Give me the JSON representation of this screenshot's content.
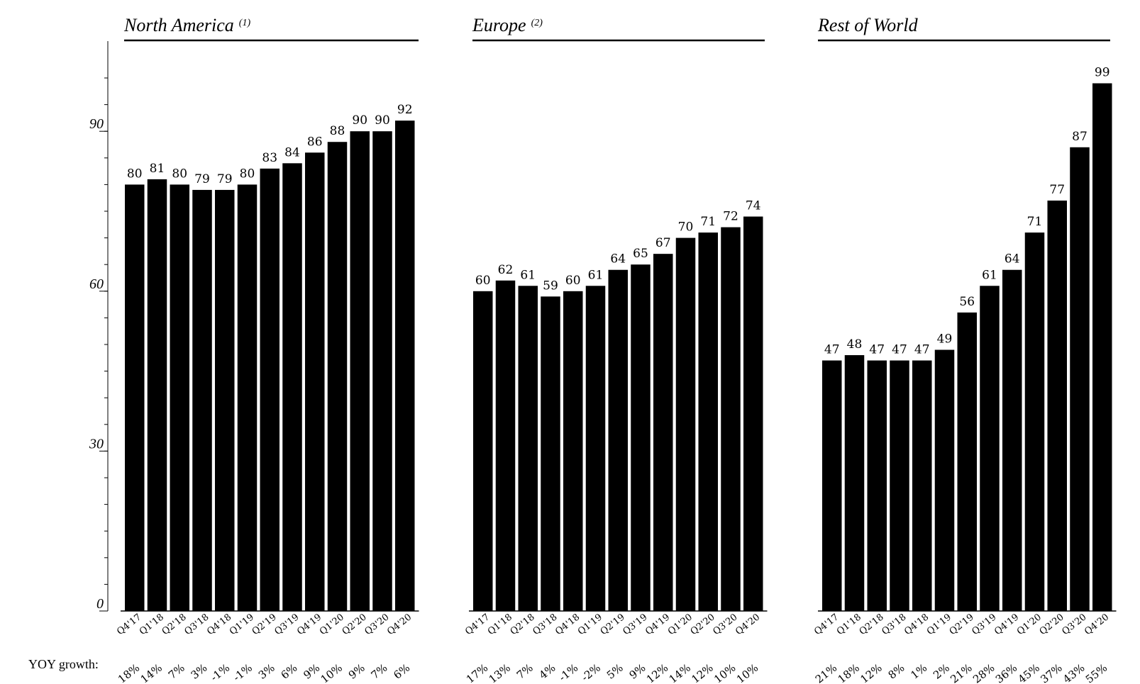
{
  "yoy_label": "YOY growth:",
  "chart_data": [
    {
      "type": "bar",
      "title": "North America",
      "title_note": "(1)",
      "yticks": [
        0,
        30,
        60,
        90
      ],
      "ylim": [
        0,
        105
      ],
      "categories": [
        "Q4'17",
        "Q1'18",
        "Q2'18",
        "Q3'18",
        "Q4'18",
        "Q1'19",
        "Q2'19",
        "Q3'19",
        "Q4'19",
        "Q1'20",
        "Q2'20",
        "Q3'20",
        "Q4'20"
      ],
      "values": [
        80,
        81,
        80,
        79,
        79,
        80,
        83,
        84,
        86,
        88,
        90,
        90,
        92
      ],
      "yoy_growth": [
        "18%",
        "14%",
        "7%",
        "3%",
        "-1%",
        "-1%",
        "3%",
        "6%",
        "9%",
        "10%",
        "9%",
        "7%",
        "6%"
      ]
    },
    {
      "type": "bar",
      "title": "Europe",
      "title_note": "(2)",
      "ylim": [
        0,
        105
      ],
      "categories": [
        "Q4'17",
        "Q1'18",
        "Q2'18",
        "Q3'18",
        "Q4'18",
        "Q1'19",
        "Q2'19",
        "Q3'19",
        "Q4'19",
        "Q1'20",
        "Q2'20",
        "Q3'20",
        "Q4'20"
      ],
      "values": [
        60,
        62,
        61,
        59,
        60,
        61,
        64,
        65,
        67,
        70,
        71,
        72,
        74
      ],
      "yoy_growth": [
        "17%",
        "13%",
        "7%",
        "4%",
        "-1%",
        "-2%",
        "5%",
        "9%",
        "12%",
        "14%",
        "12%",
        "10%",
        "10%"
      ]
    },
    {
      "type": "bar",
      "title": "Rest of World",
      "title_note": "",
      "ylim": [
        0,
        105
      ],
      "categories": [
        "Q4'17",
        "Q1'18",
        "Q2'18",
        "Q3'18",
        "Q4'18",
        "Q1'19",
        "Q2'19",
        "Q3'19",
        "Q4'19",
        "Q1'20",
        "Q2'20",
        "Q3'20",
        "Q4'20"
      ],
      "values": [
        47,
        48,
        47,
        47,
        47,
        49,
        56,
        61,
        64,
        71,
        77,
        87,
        99
      ],
      "yoy_growth": [
        "21%",
        "18%",
        "12%",
        "8%",
        "1%",
        "2%",
        "21%",
        "28%",
        "36%",
        "45%",
        "37%",
        "43%",
        "55%"
      ]
    }
  ]
}
